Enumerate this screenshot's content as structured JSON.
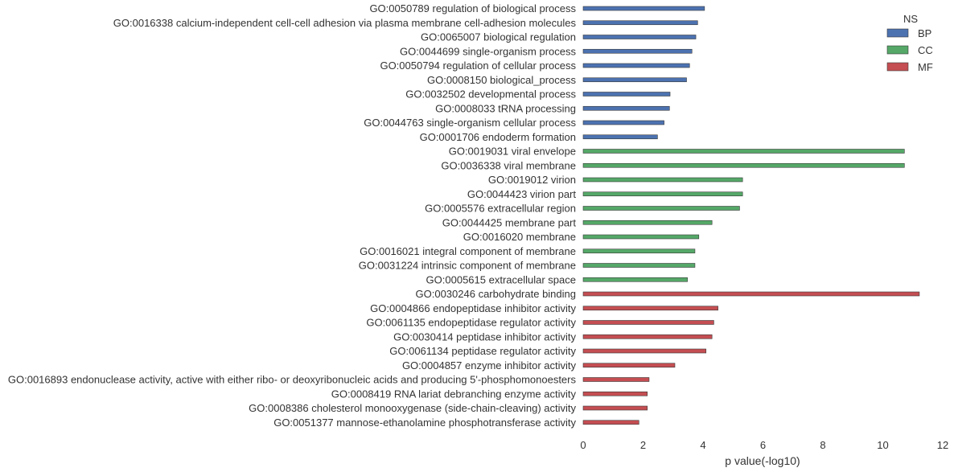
{
  "chart_data": {
    "type": "bar",
    "orientation": "horizontal",
    "xlabel": "p value(-log10)",
    "xlim": [
      0,
      12
    ],
    "xticks": [
      0,
      2,
      4,
      6,
      8,
      10,
      12
    ],
    "grid": false,
    "legend": {
      "title": "NS",
      "placement": "top-right",
      "entries": [
        {
          "name": "BP",
          "color": "#4c72b0"
        },
        {
          "name": "CC",
          "color": "#55a868"
        },
        {
          "name": "MF",
          "color": "#c44e52"
        }
      ]
    },
    "bars": [
      {
        "label": "GO:0050789 regulation of biological process",
        "value": 4.05,
        "series": "BP"
      },
      {
        "label": "GO:0016338 calcium-independent cell-cell adhesion via plasma membrane cell-adhesion molecules",
        "value": 3.82,
        "series": "BP"
      },
      {
        "label": "GO:0065007 biological regulation",
        "value": 3.76,
        "series": "BP"
      },
      {
        "label": "GO:0044699 single-organism process",
        "value": 3.63,
        "series": "BP"
      },
      {
        "label": "GO:0050794 regulation of cellular process",
        "value": 3.55,
        "series": "BP"
      },
      {
        "label": "GO:0008150 biological_process",
        "value": 3.45,
        "series": "BP"
      },
      {
        "label": "GO:0032502 developmental process",
        "value": 2.9,
        "series": "BP"
      },
      {
        "label": "GO:0008033 tRNA processing",
        "value": 2.88,
        "series": "BP"
      },
      {
        "label": "GO:0044763 single-organism cellular process",
        "value": 2.7,
        "series": "BP"
      },
      {
        "label": "GO:0001706 endoderm formation",
        "value": 2.48,
        "series": "BP"
      },
      {
        "label": "GO:0019031 viral envelope",
        "value": 10.72,
        "series": "CC"
      },
      {
        "label": "GO:0036338 viral membrane",
        "value": 10.72,
        "series": "CC"
      },
      {
        "label": "GO:0019012 virion",
        "value": 5.32,
        "series": "CC"
      },
      {
        "label": "GO:0044423 virion part",
        "value": 5.32,
        "series": "CC"
      },
      {
        "label": "GO:0005576 extracellular region",
        "value": 5.22,
        "series": "CC"
      },
      {
        "label": "GO:0044425 membrane part",
        "value": 4.3,
        "series": "CC"
      },
      {
        "label": "GO:0016020 membrane",
        "value": 3.86,
        "series": "CC"
      },
      {
        "label": "GO:0016021 integral component of membrane",
        "value": 3.73,
        "series": "CC"
      },
      {
        "label": "GO:0031224 intrinsic component of membrane",
        "value": 3.73,
        "series": "CC"
      },
      {
        "label": "GO:0005615 extracellular space",
        "value": 3.48,
        "series": "CC"
      },
      {
        "label": "GO:0030246 carbohydrate binding",
        "value": 11.22,
        "series": "MF"
      },
      {
        "label": "GO:0004866 endopeptidase inhibitor activity",
        "value": 4.5,
        "series": "MF"
      },
      {
        "label": "GO:0061135 endopeptidase regulator activity",
        "value": 4.36,
        "series": "MF"
      },
      {
        "label": "GO:0030414 peptidase inhibitor activity",
        "value": 4.3,
        "series": "MF"
      },
      {
        "label": "GO:0061134 peptidase regulator activity",
        "value": 4.1,
        "series": "MF"
      },
      {
        "label": "GO:0004857 enzyme inhibitor activity",
        "value": 3.06,
        "series": "MF"
      },
      {
        "label": "GO:0016893 endonuclease activity, active with either ribo- or deoxyribonucleic acids and producing 5'-phosphomonoesters",
        "value": 2.2,
        "series": "MF"
      },
      {
        "label": "GO:0008419 RNA lariat debranching enzyme activity",
        "value": 2.14,
        "series": "MF"
      },
      {
        "label": "GO:0008386 cholesterol monooxygenase (side-chain-cleaving) activity",
        "value": 2.14,
        "series": "MF"
      },
      {
        "label": "GO:0051377 mannose-ethanolamine phosphotransferase activity",
        "value": 1.86,
        "series": "MF"
      }
    ]
  }
}
